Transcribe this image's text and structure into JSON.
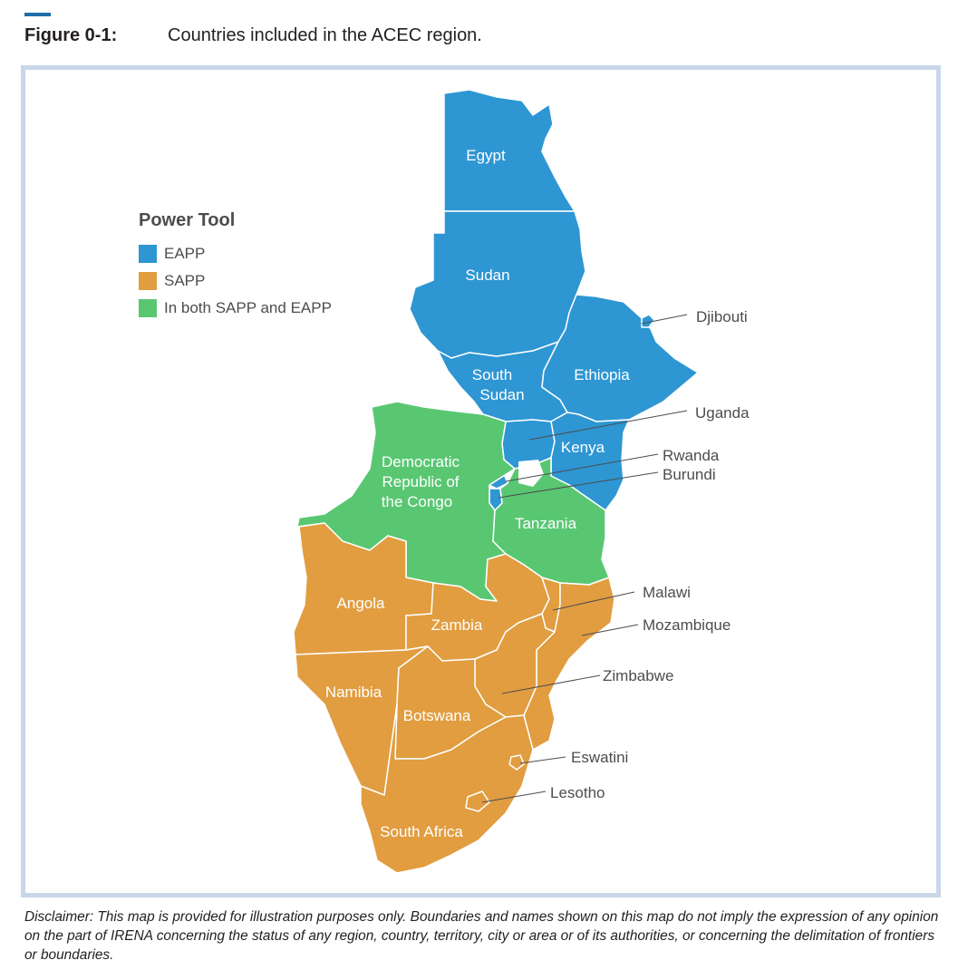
{
  "figure": {
    "number": "Figure 0-1:",
    "caption": "Countries included in the ACEC region."
  },
  "legend": {
    "title": "Power Tool",
    "items": [
      {
        "label": "EAPP",
        "color": "#2e96d3"
      },
      {
        "label": "SAPP",
        "color": "#e19d40"
      },
      {
        "label": "In both SAPP and EAPP",
        "color": "#59c772"
      }
    ]
  },
  "map": {
    "pool_colors": {
      "EAPP": "#2e96d3",
      "SAPP": "#e19d40",
      "both": "#59c772"
    },
    "countries": {
      "egypt": {
        "name": "Egypt",
        "pool": "EAPP"
      },
      "sudan": {
        "name": "Sudan",
        "pool": "EAPP"
      },
      "south_sudan": {
        "name_line1": "South",
        "name_line2": "Sudan",
        "pool": "EAPP"
      },
      "ethiopia": {
        "name": "Ethiopia",
        "pool": "EAPP"
      },
      "djibouti": {
        "name": "Djibouti",
        "pool": "EAPP"
      },
      "uganda": {
        "name": "Uganda",
        "pool": "EAPP"
      },
      "kenya": {
        "name": "Kenya",
        "pool": "EAPP"
      },
      "rwanda": {
        "name": "Rwanda",
        "pool": "EAPP"
      },
      "burundi": {
        "name": "Burundi",
        "pool": "EAPP"
      },
      "drc": {
        "name_line1": "Democratic",
        "name_line2": "Republic of",
        "name_line3": "the Congo",
        "pool": "both"
      },
      "tanzania": {
        "name": "Tanzania",
        "pool": "both"
      },
      "angola": {
        "name": "Angola",
        "pool": "SAPP"
      },
      "zambia": {
        "name": "Zambia",
        "pool": "SAPP"
      },
      "malawi": {
        "name": "Malawi",
        "pool": "SAPP"
      },
      "mozambique": {
        "name": "Mozambique",
        "pool": "SAPP"
      },
      "zimbabwe": {
        "name": "Zimbabwe",
        "pool": "SAPP"
      },
      "namibia": {
        "name": "Namibia",
        "pool": "SAPP"
      },
      "botswana": {
        "name": "Botswana",
        "pool": "SAPP"
      },
      "eswatini": {
        "name": "Eswatini",
        "pool": "SAPP"
      },
      "lesotho": {
        "name": "Lesotho",
        "pool": "SAPP"
      },
      "south_africa": {
        "name": "South Africa",
        "pool": "SAPP"
      }
    }
  },
  "disclaimer": "Disclaimer: This map is provided for illustration purposes only. Boundaries and names shown on this map do not imply the expression of any opinion on the part of IRENA concerning the status of any region, country, territory, city or area or of its authorities, or concerning the delimitation of frontiers or boundaries."
}
